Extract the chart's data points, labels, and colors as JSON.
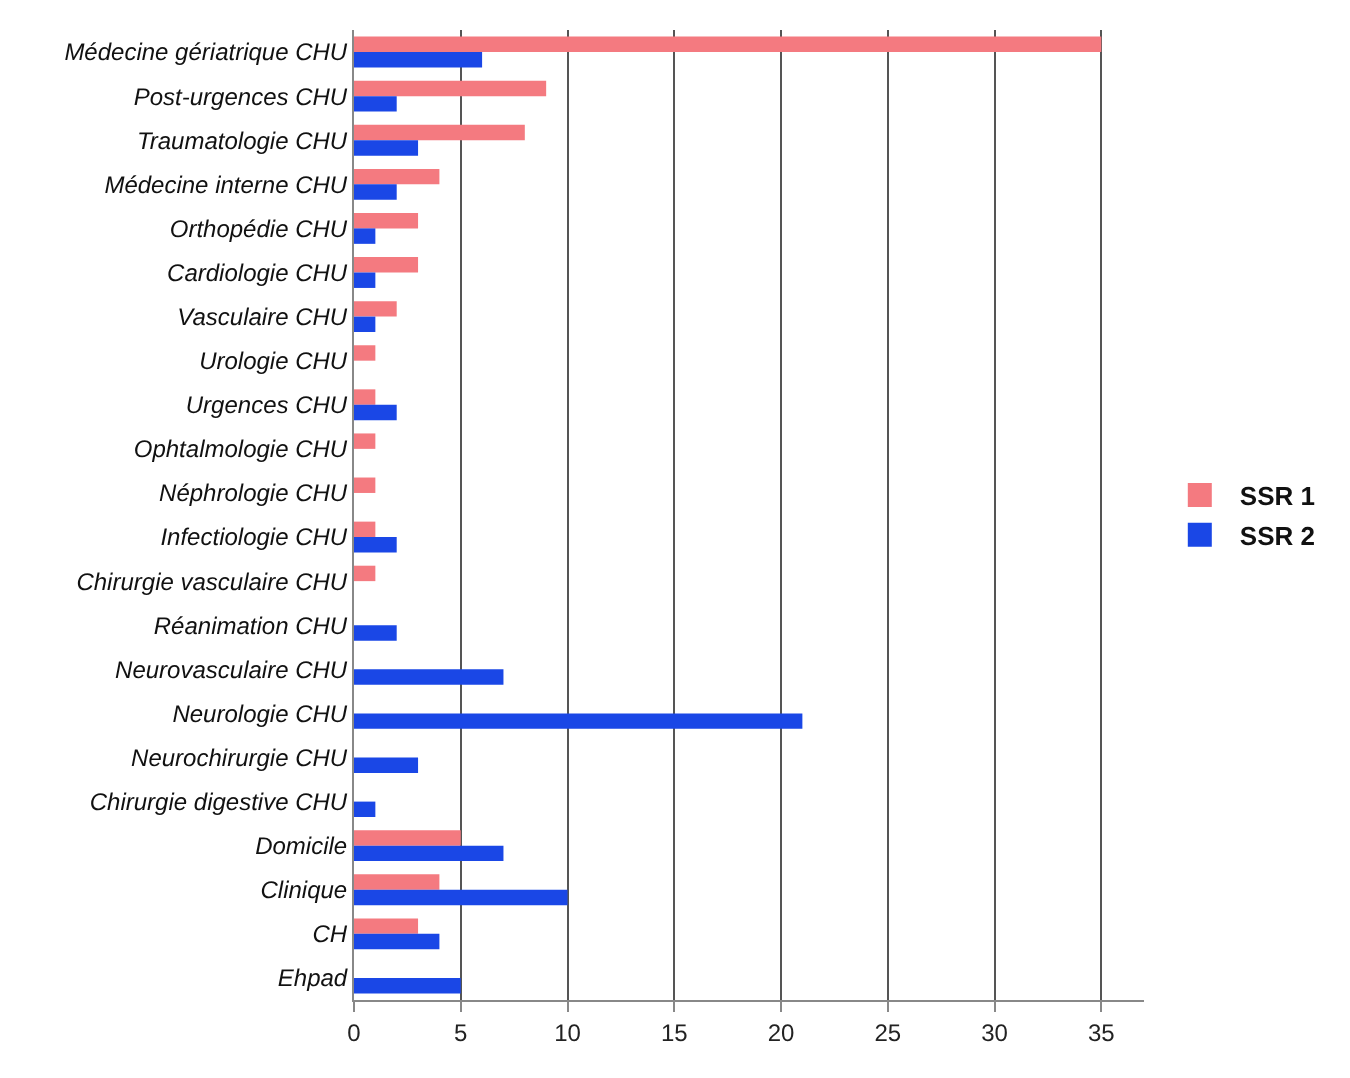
{
  "chart_data": {
    "type": "bar",
    "orientation": "horizontal",
    "categories": [
      "Médecine gériatrique CHU",
      "Post-urgences CHU",
      "Traumatologie CHU",
      "Médecine interne CHU",
      "Orthopédie CHU",
      "Cardiologie CHU",
      "Vasculaire CHU",
      "Urologie CHU",
      "Urgences CHU",
      "Ophtalmologie CHU",
      "Néphrologie CHU",
      "Infectiologie CHU",
      "Chirurgie vasculaire CHU",
      "Réanimation CHU",
      "Neurovasculaire CHU",
      "Neurologie CHU",
      "Neurochirurgie CHU",
      "Chirurgie digestive CHU",
      "Domicile",
      "Clinique",
      "CH",
      "Ehpad"
    ],
    "series": [
      {
        "name": "SSR 1",
        "color": "#f47a80",
        "values": [
          35,
          9,
          8,
          4,
          3,
          3,
          2,
          1,
          1,
          1,
          1,
          1,
          1,
          0,
          0,
          0,
          0,
          0,
          5,
          4,
          3,
          0
        ]
      },
      {
        "name": "SSR 2",
        "color": "#1a47e6",
        "values": [
          6,
          2,
          3,
          2,
          1,
          1,
          1,
          0,
          2,
          0,
          0,
          2,
          0,
          2,
          7,
          21,
          3,
          1,
          7,
          10,
          4,
          5
        ]
      }
    ],
    "xlim": [
      0,
      37
    ],
    "xticks": [
      0,
      5,
      10,
      15,
      20,
      25,
      30,
      35
    ],
    "grid": "x",
    "legend": "right"
  }
}
